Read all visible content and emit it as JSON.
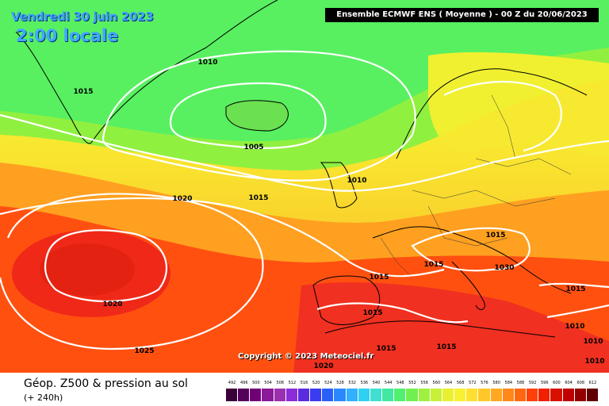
{
  "header": {
    "date": "Vendredi 30 juin 2023",
    "time": "2:00 locale",
    "model": "Ensemble ECMWF ENS  ( Moyenne )  -  00 Z du 20/06/2023"
  },
  "copyright": "Copyright © 2023 Meteociel.fr",
  "footer": {
    "title": "Géop. Z500 & pression au sol",
    "lead": "(+ 240h)"
  },
  "isobar_labels": [
    "1010",
    "1015",
    "1005",
    "1010",
    "1020",
    "1015",
    "1015",
    "1015",
    "1030",
    "1020",
    "1015",
    "1015",
    "1025",
    "1015",
    "1015",
    "1010",
    "1010",
    "1010",
    "1020",
    "1015"
  ],
  "scale": {
    "ticks": [
      "492",
      "496",
      "500",
      "504",
      "508",
      "512",
      "516",
      "520",
      "524",
      "528",
      "532",
      "536",
      "540",
      "544",
      "548",
      "552",
      "556",
      "560",
      "564",
      "568",
      "572",
      "576",
      "580",
      "584",
      "588",
      "592",
      "596",
      "600",
      "604",
      "608",
      "612"
    ],
    "colors": [
      "#3a003a",
      "#55005a",
      "#700078",
      "#8a1a98",
      "#9a30b0",
      "#8a2cd8",
      "#5a2ce0",
      "#3a3cf0",
      "#2a60f8",
      "#2a88ff",
      "#30b0ff",
      "#30d0f0",
      "#40e0d0",
      "#40e8a0",
      "#50f070",
      "#70f050",
      "#a0f040",
      "#c8f038",
      "#e8f030",
      "#f8f030",
      "#ffe030",
      "#ffc828",
      "#ffa820",
      "#ff8818",
      "#ff6810",
      "#ff4008",
      "#f02000",
      "#d81000",
      "#c00000",
      "#900000",
      "#600000"
    ]
  }
}
